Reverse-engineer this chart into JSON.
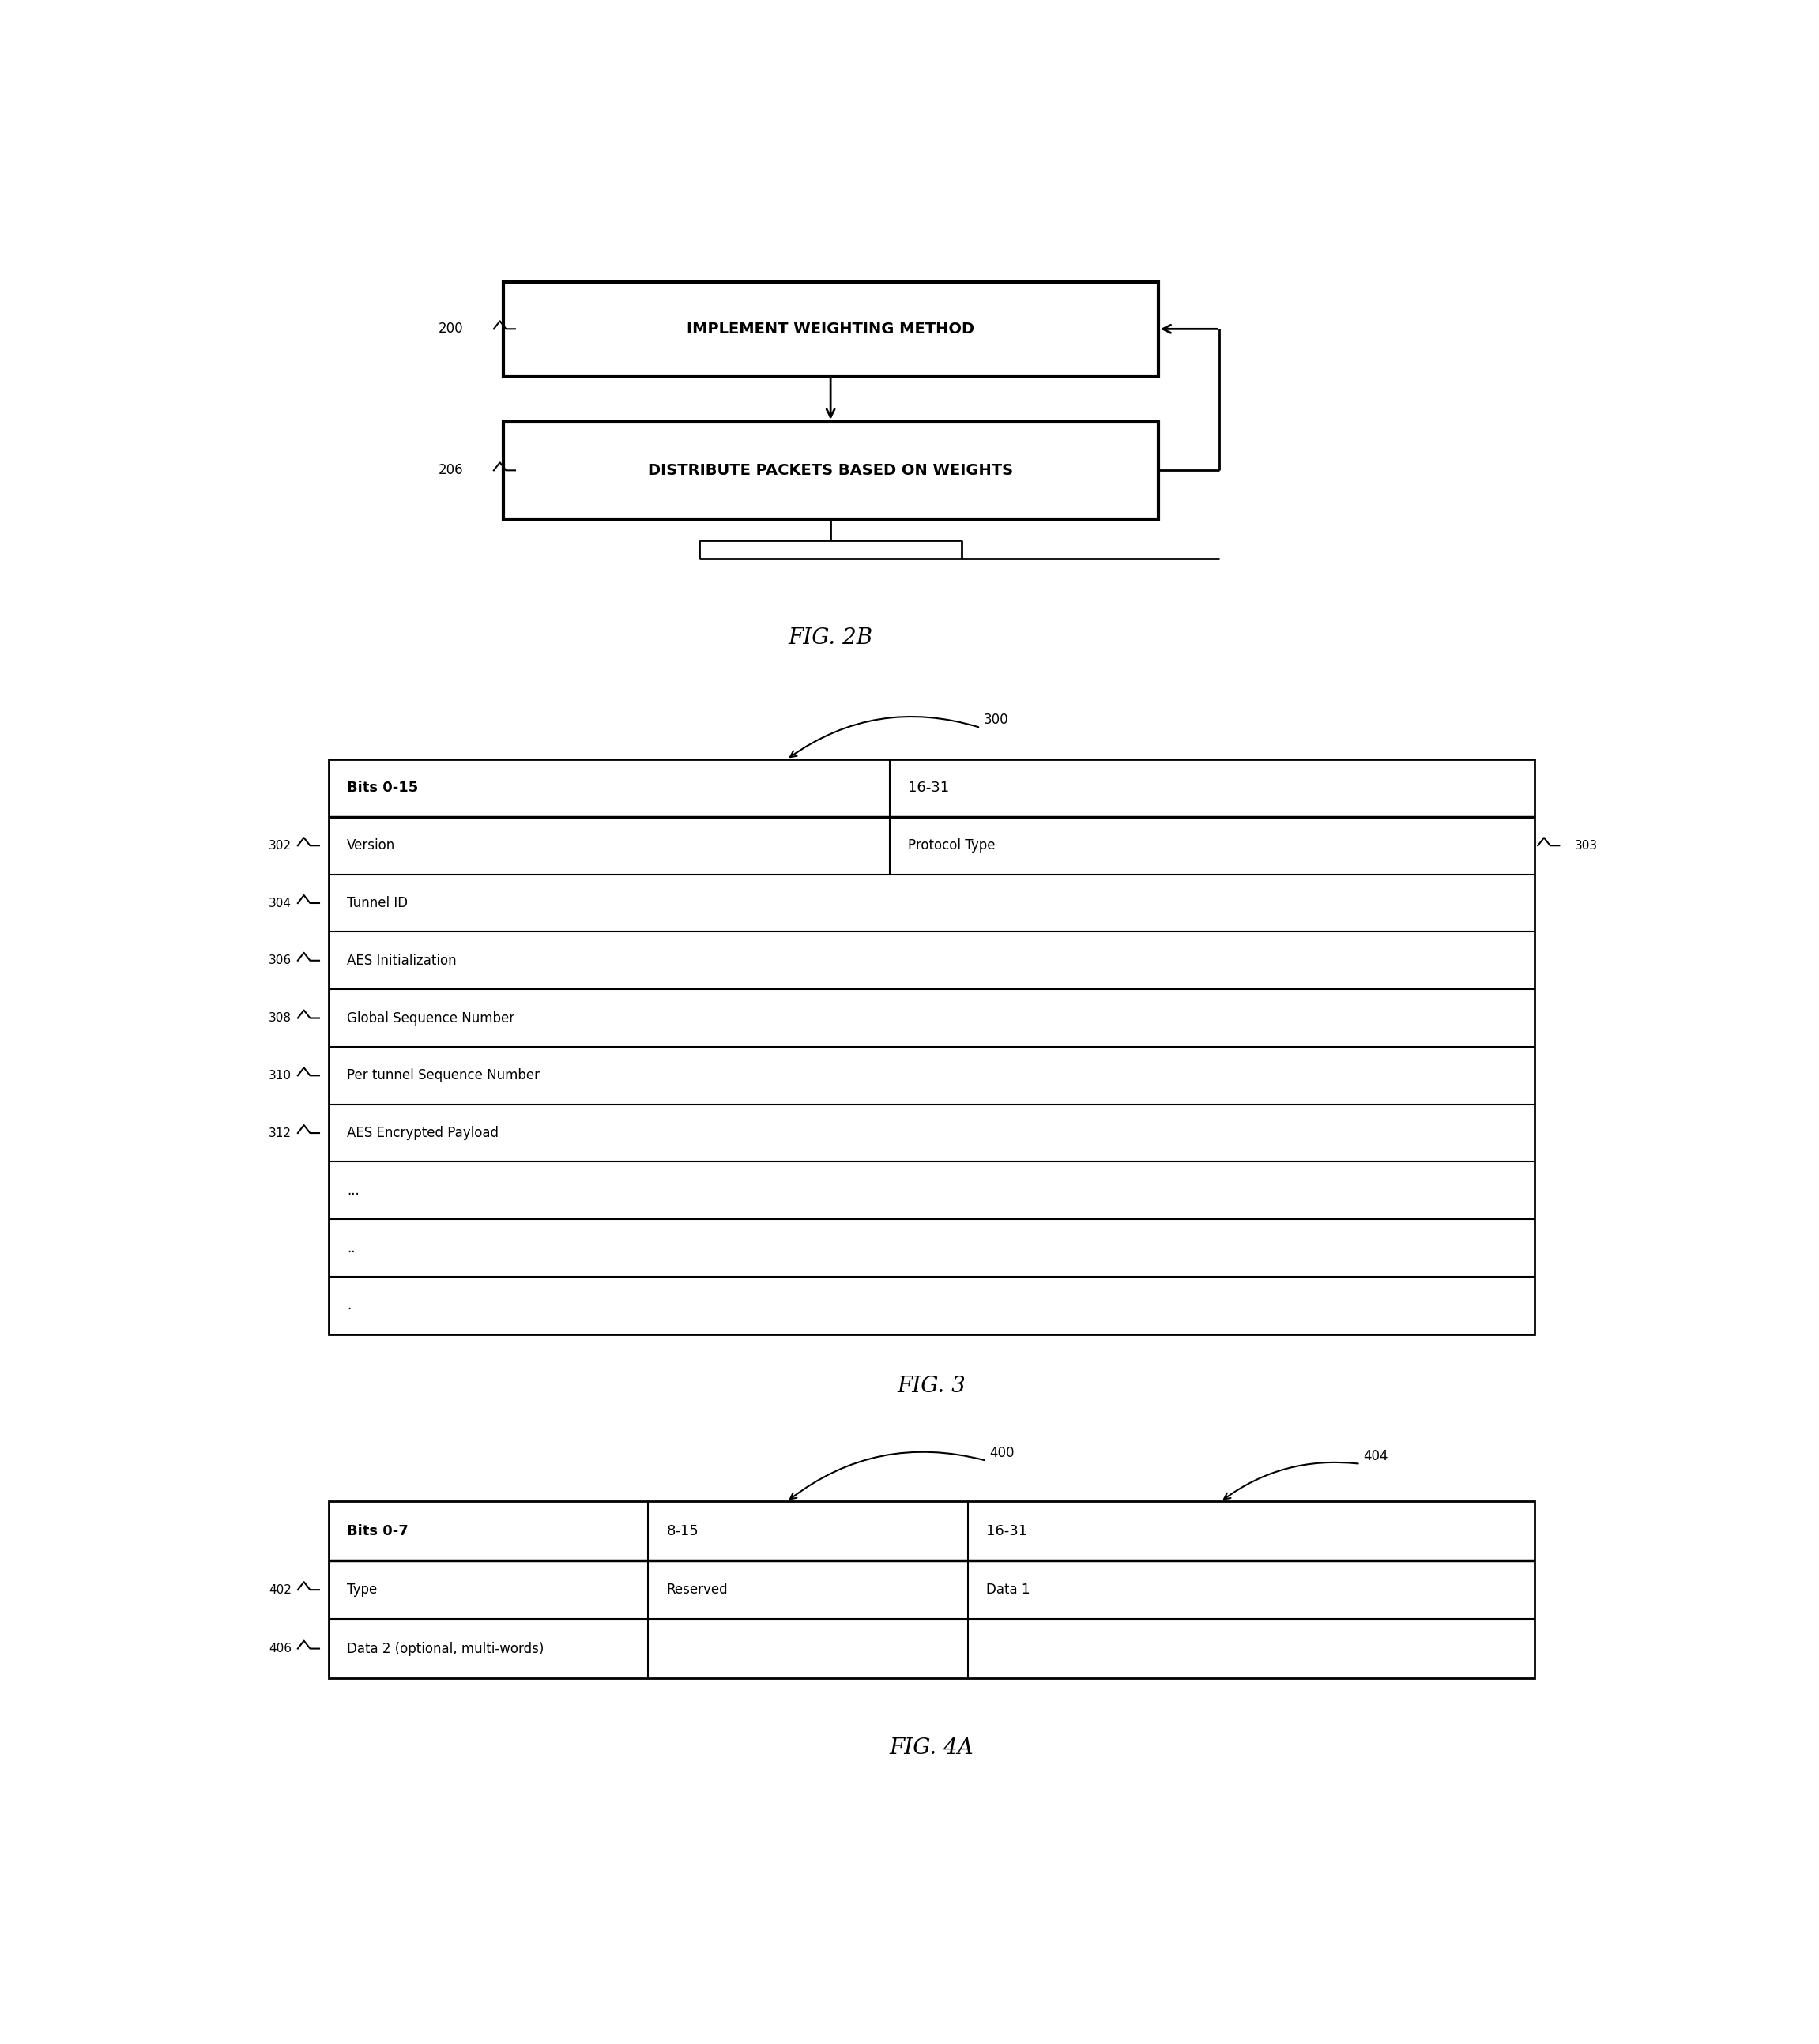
{
  "bg_color": "#ffffff",
  "fig2b": {
    "box1_label": "IMPLEMENT WEIGHTING METHOD",
    "box2_label": "DISTRIBUTE PACKETS BASED ON WEIGHTS",
    "label1": "200",
    "label2": "206",
    "caption": "FIG. 2B"
  },
  "fig3": {
    "caption": "FIG. 3",
    "ref_label": "300",
    "col1_header": "Bits 0-15",
    "col2_header": "16-31",
    "rows": [
      {
        "label": "302",
        "col1": "Version",
        "col2": "Protocol Type",
        "right_label": "303"
      },
      {
        "label": "304",
        "col1": "Tunnel ID",
        "col2": ""
      },
      {
        "label": "306",
        "col1": "AES Initialization",
        "col2": ""
      },
      {
        "label": "308",
        "col1": "Global Sequence Number",
        "col2": ""
      },
      {
        "label": "310",
        "col1": "Per tunnel Sequence Number",
        "col2": ""
      },
      {
        "label": "312",
        "col1": "AES Encrypted Payload",
        "col2": ""
      },
      {
        "label": "",
        "col1": "...",
        "col2": ""
      },
      {
        "label": "",
        "col1": "..",
        "col2": ""
      },
      {
        "label": "",
        "col1": ".",
        "col2": ""
      }
    ]
  },
  "fig4a": {
    "caption": "FIG. 4A",
    "ref_label": "400",
    "col3_label": "404",
    "col1_header": "Bits 0-7",
    "col2_header": "8-15",
    "col3_header": "16-31",
    "rows": [
      {
        "label": "402",
        "col1": "Type",
        "col2": "Reserved",
        "col3": "Data 1"
      },
      {
        "label": "406",
        "col1": "Data 2 (optional, multi-words)",
        "col2": null,
        "col3": null
      }
    ]
  }
}
